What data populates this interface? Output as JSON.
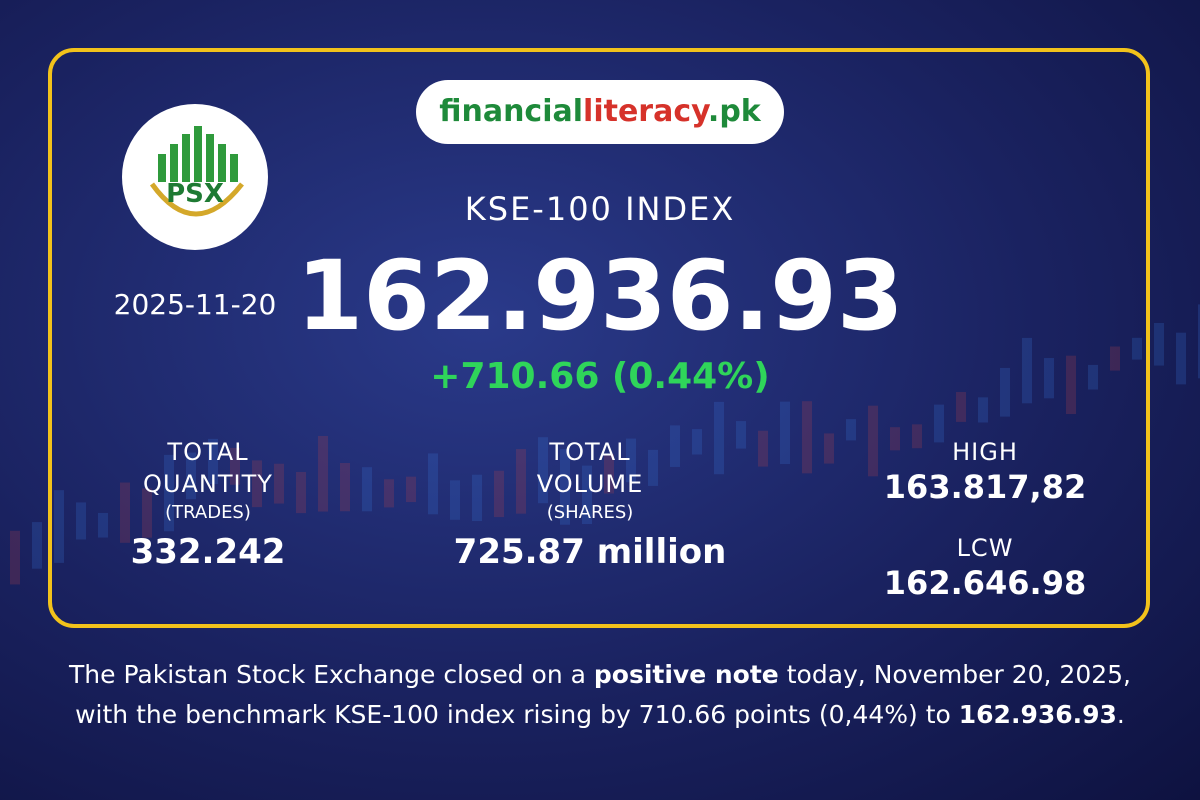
{
  "brand": {
    "parts": [
      "financial",
      "literacy",
      ".pk"
    ]
  },
  "logo": {
    "text": "PSX"
  },
  "date": "2025-11-20",
  "index": {
    "title": "KSE-100 INDEX",
    "value": "162.936.93",
    "change": "+710.66 (0.44%)"
  },
  "stats": [
    {
      "label": [
        "TOTAL",
        "QUANTITY"
      ],
      "sub": "(TRADES)",
      "value": "332.242"
    },
    {
      "label": [
        "TOTAL",
        "VOLUME"
      ],
      "sub": "(SHARES)",
      "value": "725.87 million"
    }
  ],
  "range": {
    "high_label": "HIGH",
    "high": "163.817,82",
    "low_label": "LCW",
    "low": "162.646.98"
  },
  "footer": {
    "line1": [
      "The Pakistan Stock Exchange closed on a ",
      "positive note",
      " today, November 20, 2025,"
    ],
    "line2": [
      "with the benchmark KSE-100 index rising by 710.66 points (0,44%) to ",
      "162.936.93",
      "."
    ]
  }
}
